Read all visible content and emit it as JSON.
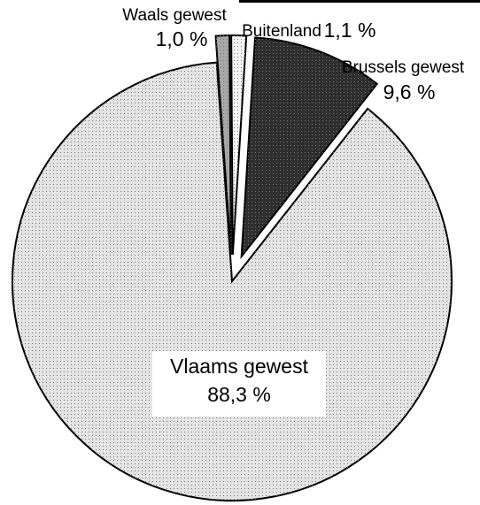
{
  "chart_data": {
    "type": "pie",
    "categories": [
      "Waals gewest",
      "Buitenland",
      "Brussels gewest",
      "Vlaams gewest"
    ],
    "values": [
      1.0,
      1.1,
      9.6,
      88.3
    ],
    "value_labels": [
      "1,0 %",
      "1,1 %",
      "9,6 %",
      "88,3 %"
    ],
    "colors": [
      "#a8a8a8",
      "#f4f4f4",
      "#2e2e2e",
      "#e4e4e4"
    ],
    "exploded": [
      true,
      true,
      true,
      false
    ]
  }
}
